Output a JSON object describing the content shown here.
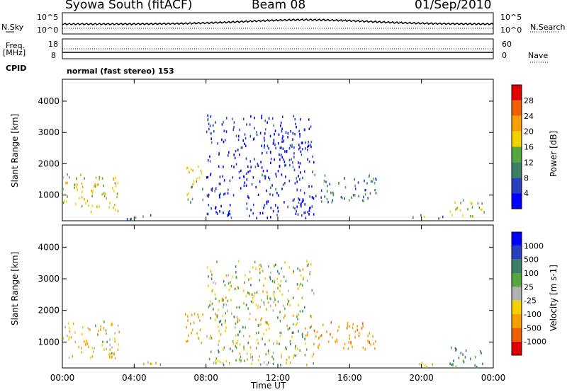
{
  "header": {
    "station": "Syowa South (fitACF)",
    "beam": "Beam 08",
    "date": "01/Sep/2010"
  },
  "left_labels": {
    "nsky": "N.Sky",
    "freq": "Freq.",
    "mhz": "[MHz]",
    "cpid": "CPID"
  },
  "right_labels": {
    "nsearch": "N.Search",
    "nave": "Nave"
  },
  "noise_axis": {
    "top": "10^5",
    "bottom": "10^0"
  },
  "freq_axis": {
    "left_top": "18",
    "left_bottom": "8",
    "right_top": "60",
    "right_bottom": "0"
  },
  "cpid_text": "normal (fast stereo) 153",
  "ylabel": "Slant Range [km]",
  "xlabel": "Time UT",
  "colors": {
    "power_scale": [
      "#0000ff",
      "#2a3fbf",
      "#3a7f66",
      "#55a840",
      "#f5d000",
      "#f5a000",
      "#f06000",
      "#e00000"
    ],
    "velocity_scale": [
      "#e00000",
      "#f06000",
      "#f5a000",
      "#f5d000",
      "#b0b0b0",
      "#55a840",
      "#3a7f66",
      "#2a3fbf",
      "#0000ff"
    ]
  },
  "chart_data": [
    {
      "type": "heatmap",
      "name": "power",
      "x_ticks": [
        "00:00",
        "04:00",
        "08:00",
        "12:00",
        "16:00",
        "20:00",
        "00:00"
      ],
      "y_ticks": [
        "1000",
        "2000",
        "3000",
        "4000"
      ],
      "ylim": [
        180,
        4700
      ],
      "colorbar_label": "Power [dB]",
      "colorbar_ticks": [
        "4",
        "8",
        "12",
        "16",
        "20",
        "24",
        "28"
      ],
      "regions": [
        {
          "t0": 0.0,
          "t1": 3.2,
          "r0": 500,
          "r1": 1700,
          "v": 18
        },
        {
          "t0": 3.5,
          "t1": 5.8,
          "r0": 250,
          "r1": 400,
          "v": 10
        },
        {
          "t0": 6.8,
          "t1": 7.8,
          "r0": 800,
          "r1": 2000,
          "v": 16
        },
        {
          "t0": 8.0,
          "t1": 14.0,
          "r0": 300,
          "r1": 3600,
          "v": 4
        },
        {
          "t0": 14.0,
          "t1": 17.5,
          "r0": 800,
          "r1": 1700,
          "v": 10
        },
        {
          "t0": 19.5,
          "t1": 21.5,
          "r0": 250,
          "r1": 400,
          "v": 12
        },
        {
          "t0": 21.5,
          "t1": 23.5,
          "r0": 250,
          "r1": 900,
          "v": 16
        }
      ]
    },
    {
      "type": "heatmap",
      "name": "velocity",
      "x_ticks": [
        "00:00",
        "04:00",
        "08:00",
        "12:00",
        "16:00",
        "20:00",
        "00:00"
      ],
      "y_ticks": [
        "1000",
        "2000",
        "3000",
        "4000"
      ],
      "ylim": [
        180,
        4700
      ],
      "colorbar_label": "Velocity [m s-1]",
      "colorbar_ticks": [
        "1000",
        "500",
        "100",
        "25",
        "-25",
        "-100",
        "-500",
        "-1000"
      ],
      "regions": [
        {
          "t0": 0.0,
          "t1": 3.2,
          "r0": 500,
          "r1": 1700,
          "v": -100
        },
        {
          "t0": 3.5,
          "t1": 5.8,
          "r0": 250,
          "r1": 400,
          "v": -100
        },
        {
          "t0": 6.8,
          "t1": 7.8,
          "r0": 800,
          "r1": 2000,
          "v": -300
        },
        {
          "t0": 8.0,
          "t1": 14.0,
          "r0": 300,
          "r1": 3600,
          "v": 0
        },
        {
          "t0": 14.0,
          "t1": 17.5,
          "r0": 800,
          "r1": 1700,
          "v": -400
        },
        {
          "t0": 19.5,
          "t1": 21.5,
          "r0": 250,
          "r1": 400,
          "v": -100
        },
        {
          "t0": 21.5,
          "t1": 23.5,
          "r0": 250,
          "r1": 900,
          "v": 200
        }
      ]
    }
  ]
}
